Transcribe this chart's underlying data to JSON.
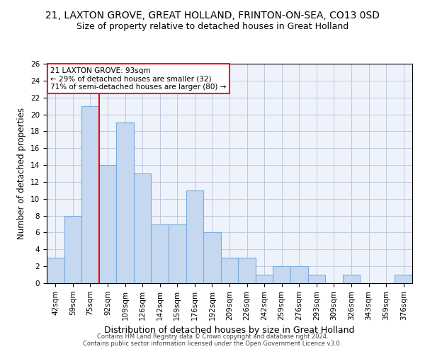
{
  "title": "21, LAXTON GROVE, GREAT HOLLAND, FRINTON-ON-SEA, CO13 0SD",
  "subtitle": "Size of property relative to detached houses in Great Holland",
  "xlabel": "Distribution of detached houses by size in Great Holland",
  "ylabel": "Number of detached properties",
  "categories": [
    "42sqm",
    "59sqm",
    "75sqm",
    "92sqm",
    "109sqm",
    "126sqm",
    "142sqm",
    "159sqm",
    "176sqm",
    "192sqm",
    "209sqm",
    "226sqm",
    "242sqm",
    "259sqm",
    "276sqm",
    "293sqm",
    "309sqm",
    "326sqm",
    "343sqm",
    "359sqm",
    "376sqm"
  ],
  "values": [
    3,
    8,
    21,
    14,
    19,
    13,
    7,
    7,
    11,
    6,
    3,
    3,
    1,
    2,
    2,
    1,
    0,
    1,
    0,
    0,
    1
  ],
  "bar_color": "#c5d8f0",
  "bar_edge_color": "#7aabde",
  "bar_linewidth": 0.8,
  "vline_x": 2.5,
  "vline_color": "red",
  "vline_linewidth": 1.5,
  "ylim": [
    0,
    26
  ],
  "yticks": [
    0,
    2,
    4,
    6,
    8,
    10,
    12,
    14,
    16,
    18,
    20,
    22,
    24,
    26
  ],
  "annotation_box_text": "21 LAXTON GROVE: 93sqm\n← 29% of detached houses are smaller (32)\n71% of semi-detached houses are larger (80) →",
  "annotation_box_color": "red",
  "annotation_box_facecolor": "white",
  "title_fontsize": 10,
  "subtitle_fontsize": 9,
  "xlabel_fontsize": 9,
  "ylabel_fontsize": 8.5,
  "tick_fontsize": 7.5,
  "annotation_fontsize": 7.5,
  "footer_text1": "Contains HM Land Registry data © Crown copyright and database right 2024.",
  "footer_text2": "Contains public sector information licensed under the Open Government Licence v3.0.",
  "footer_fontsize": 6.0,
  "background_color": "#eef2fb",
  "grid_color": "#c0c8e0"
}
